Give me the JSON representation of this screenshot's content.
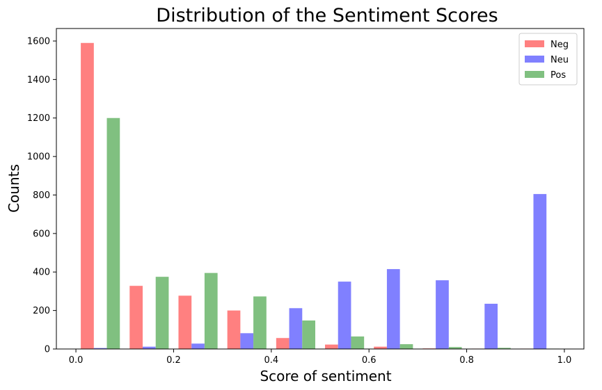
{
  "chart_data": {
    "type": "bar",
    "title": "Distribution of the Sentiment Scores",
    "xlabel": "Score of sentiment",
    "ylabel": "Counts",
    "xlim": [
      -0.04,
      1.04
    ],
    "ylim": [
      0,
      1665
    ],
    "xticks": [
      0.0,
      0.2,
      0.4,
      0.6,
      0.8,
      1.0
    ],
    "xtick_labels": [
      "0.0",
      "0.2",
      "0.4",
      "0.6",
      "0.8",
      "1.0"
    ],
    "yticks": [
      0,
      200,
      400,
      600,
      800,
      1000,
      1200,
      1400,
      1600
    ],
    "ytick_labels": [
      "0",
      "200",
      "400",
      "600",
      "800",
      "1000",
      "1200",
      "1400",
      "1600"
    ],
    "bin_edges": [
      0.0,
      0.1,
      0.2,
      0.3,
      0.4,
      0.5,
      0.6,
      0.7,
      0.8,
      0.9,
      1.0
    ],
    "grid": false,
    "legend_position": "top-right",
    "series": [
      {
        "name": "Neg",
        "color": "#ff8080",
        "values": [
          1590,
          328,
          277,
          200,
          57,
          23,
          12,
          3,
          2,
          2
        ]
      },
      {
        "name": "Neu",
        "color": "#8080ff",
        "values": [
          5,
          12,
          28,
          82,
          212,
          350,
          415,
          357,
          235,
          805
        ]
      },
      {
        "name": "Pos",
        "color": "#80c080",
        "values": [
          1200,
          375,
          395,
          273,
          148,
          65,
          25,
          10,
          6,
          2
        ]
      }
    ]
  }
}
